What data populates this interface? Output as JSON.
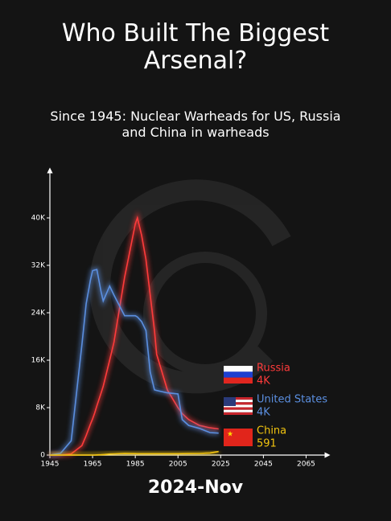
{
  "chart_data": {
    "type": "line",
    "title": "Who Built The Biggest Arsenal?",
    "subtitle": "Since 1945: Nuclear Warheads for US, Russia and China in warheads",
    "date": "2024-Nov",
    "x": [
      1945,
      1950,
      1955,
      1960,
      1962,
      1964,
      1965,
      1966,
      1967,
      1969,
      1970,
      1973,
      1975,
      1980,
      1985,
      1986,
      1988,
      1990,
      1992,
      1994,
      1995,
      2000,
      2005,
      2007,
      2010,
      2015,
      2020,
      2024
    ],
    "series": [
      {
        "name": "Russia",
        "color": "#ff3b3b",
        "end_label": "4K",
        "values": [
          0,
          5,
          200,
          1600,
          3300,
          5200,
          6100,
          7100,
          8300,
          10500,
          11600,
          16000,
          19000,
          30000,
          39000,
          40000,
          37000,
          33000,
          27000,
          21000,
          17000,
          11000,
          8000,
          7000,
          6000,
          5000,
          4600,
          4400
        ]
      },
      {
        "name": "United States",
        "color": "#5b8fe0",
        "end_label": "4K",
        "values": [
          2,
          300,
          2400,
          18600,
          25500,
          29500,
          31100,
          31200,
          31300,
          27500,
          26000,
          28500,
          27000,
          23500,
          23500,
          23300,
          22500,
          21000,
          14000,
          11000,
          10900,
          10500,
          10300,
          6000,
          5000,
          4500,
          3800,
          3700
        ]
      },
      {
        "name": "China",
        "color": "#f2c40f",
        "values": [
          0,
          0,
          0,
          0,
          0,
          0,
          1,
          5,
          25,
          50,
          75,
          180,
          200,
          280,
          240,
          230,
          230,
          230,
          230,
          230,
          230,
          230,
          230,
          240,
          260,
          270,
          350,
          591
        ]
      }
    ],
    "xlim": [
      1945,
      2075
    ],
    "ylim": [
      0,
      48000
    ],
    "xticks": [
      1945,
      1965,
      1985,
      2005,
      2025,
      2045,
      2065
    ],
    "yticks": [
      0,
      {
        "value": 8000,
        "label": "8K"
      },
      {
        "value": 16000,
        "label": "16K"
      },
      {
        "value": 24000,
        "label": "24K"
      },
      {
        "value": 32000,
        "label": "32K"
      },
      {
        "value": 40000,
        "label": "40K"
      }
    ]
  }
}
